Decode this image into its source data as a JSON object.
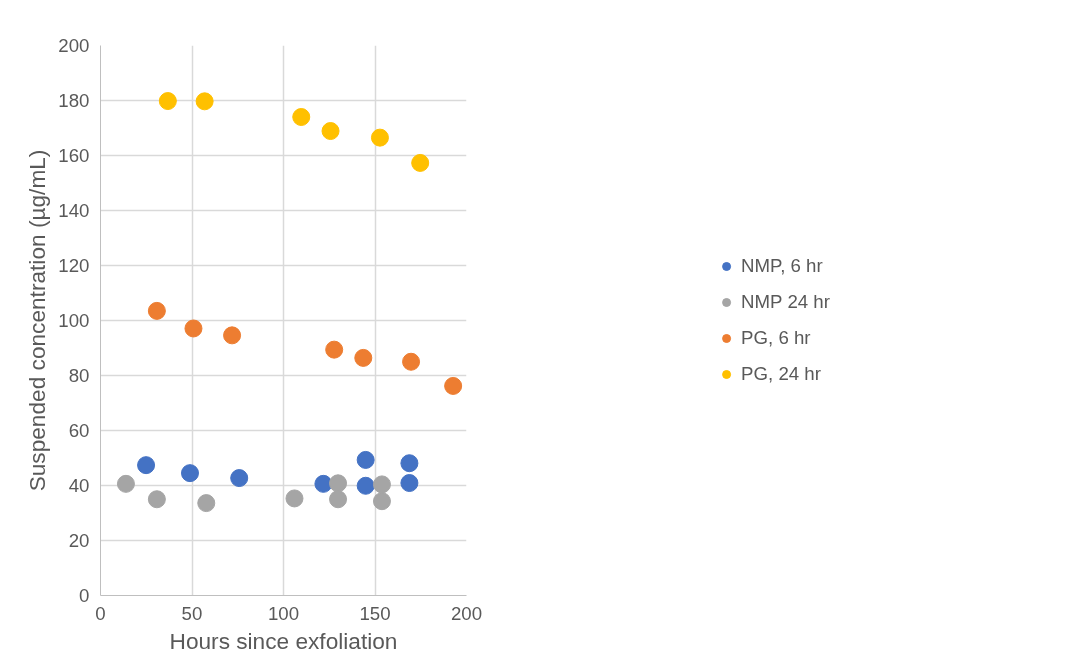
{
  "chart_data": {
    "type": "scatter",
    "xlabel": "Hours since exfoliation",
    "ylabel": "Suspended concentration (µg/mL)",
    "xlim": [
      0,
      200
    ],
    "xticks": [
      0,
      50,
      100,
      150,
      200
    ],
    "ylim": [
      0,
      200
    ],
    "yticks": [
      0,
      20,
      40,
      60,
      80,
      100,
      120,
      140,
      160,
      180,
      200
    ],
    "grid": true,
    "legend": "right",
    "marker": "circle",
    "series": [
      {
        "name": "NMP, 6 hr",
        "color": "#4472c4",
        "x": [
          24.9,
          48.9,
          75.8,
          121.8,
          144.9,
          144.9,
          168.8,
          168.8
        ],
        "values": [
          47.4,
          44.5,
          42.7,
          40.6,
          49.3,
          39.9,
          48.1,
          40.9
        ]
      },
      {
        "name": "NMP 24 hr",
        "color": "#a5a5a5",
        "x": [
          13.9,
          30.8,
          57.8,
          106,
          129.8,
          129.8,
          153.8,
          153.8
        ],
        "values": [
          40.6,
          35.0,
          33.6,
          35.3,
          40.8,
          35.0,
          40.4,
          34.3
        ]
      },
      {
        "name": "PG, 6 hr",
        "color": "#ed7d31",
        "x": [
          30.8,
          50.8,
          71.9,
          127.7,
          143.6,
          169.7,
          192.7
        ],
        "values": [
          103.5,
          97.1,
          94.6,
          89.4,
          86.4,
          85.0,
          76.2
        ]
      },
      {
        "name": "PG, 24 hr",
        "color": "#ffc000",
        "x": [
          36.8,
          56.9,
          109.7,
          125.7,
          152.7,
          174.7
        ],
        "values": [
          179.8,
          179.7,
          174.0,
          168.9,
          166.5,
          157.3
        ]
      }
    ]
  }
}
